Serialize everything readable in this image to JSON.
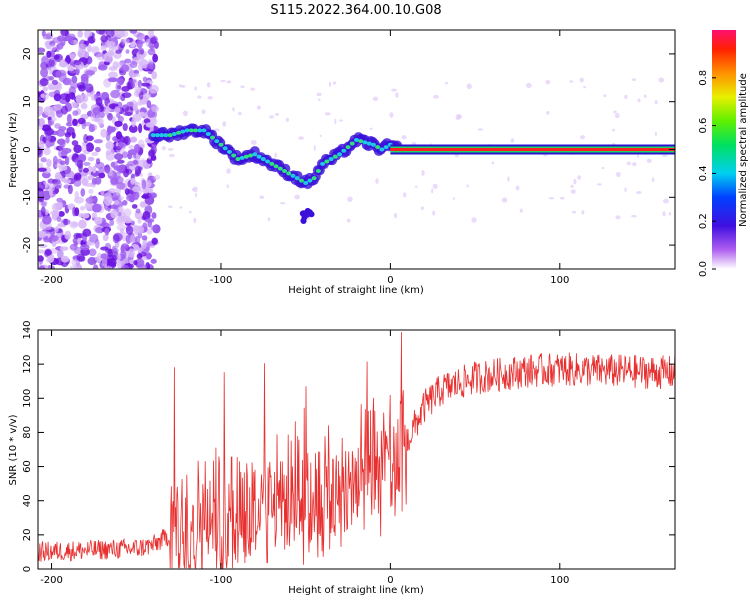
{
  "title": "S115.2022.364.00.10.G08",
  "chart_data": [
    {
      "type": "heatmap",
      "xlabel": "Height of straight line (km)",
      "ylabel": "Frequency (Hz)",
      "xlim": [
        -208,
        168
      ],
      "ylim": [
        -25,
        25
      ],
      "x_ticks": [
        -200,
        -100,
        0,
        100
      ],
      "y_ticks": [
        -20,
        -10,
        0,
        10,
        20
      ],
      "colorbar": {
        "label": "Normalized spectral amplitude",
        "ticks": [
          0.0,
          0.2,
          0.4,
          0.6,
          0.8
        ],
        "range": [
          0,
          1
        ]
      },
      "ridge": {
        "x": [
          -140,
          -130,
          -120,
          -110,
          -100,
          -90,
          -80,
          -70,
          -60,
          -50,
          -45,
          -40,
          -30,
          -20,
          -10,
          -5,
          0,
          5,
          10,
          30,
          60,
          100,
          140,
          168
        ],
        "y": [
          3,
          3,
          4,
          4,
          1,
          -2,
          -1,
          -3,
          -5,
          -7,
          -6,
          -3,
          -1,
          2,
          1,
          0,
          1,
          0,
          0,
          0,
          0,
          0,
          0,
          0
        ]
      },
      "grid": false
    },
    {
      "type": "line",
      "xlabel": "Height of straight line (km)",
      "ylabel": "SNR (10 * v/v)",
      "xlim": [
        -208,
        168
      ],
      "ylim": [
        0,
        140
      ],
      "x_ticks": [
        -200,
        -100,
        0,
        100
      ],
      "y_ticks": [
        0,
        20,
        40,
        60,
        80,
        100,
        120,
        140
      ],
      "series": [
        {
          "color": "#e83030",
          "envelope": {
            "x": [
              -208,
              -150,
              -140,
              -130,
              -120,
              -100,
              -80,
              -60,
              -40,
              -30,
              -20,
              -10,
              0,
              10,
              20,
              30,
              50,
              80,
              100,
              130,
              168
            ],
            "y": [
              10,
              12,
              14,
              20,
              28,
              32,
              35,
              38,
              42,
              48,
              52,
              55,
              58,
              75,
              95,
              105,
              112,
              116,
              117,
              116,
              115
            ]
          }
        }
      ],
      "grid": false
    }
  ],
  "colors": {
    "line": "#e83030",
    "axis": "#000000"
  }
}
